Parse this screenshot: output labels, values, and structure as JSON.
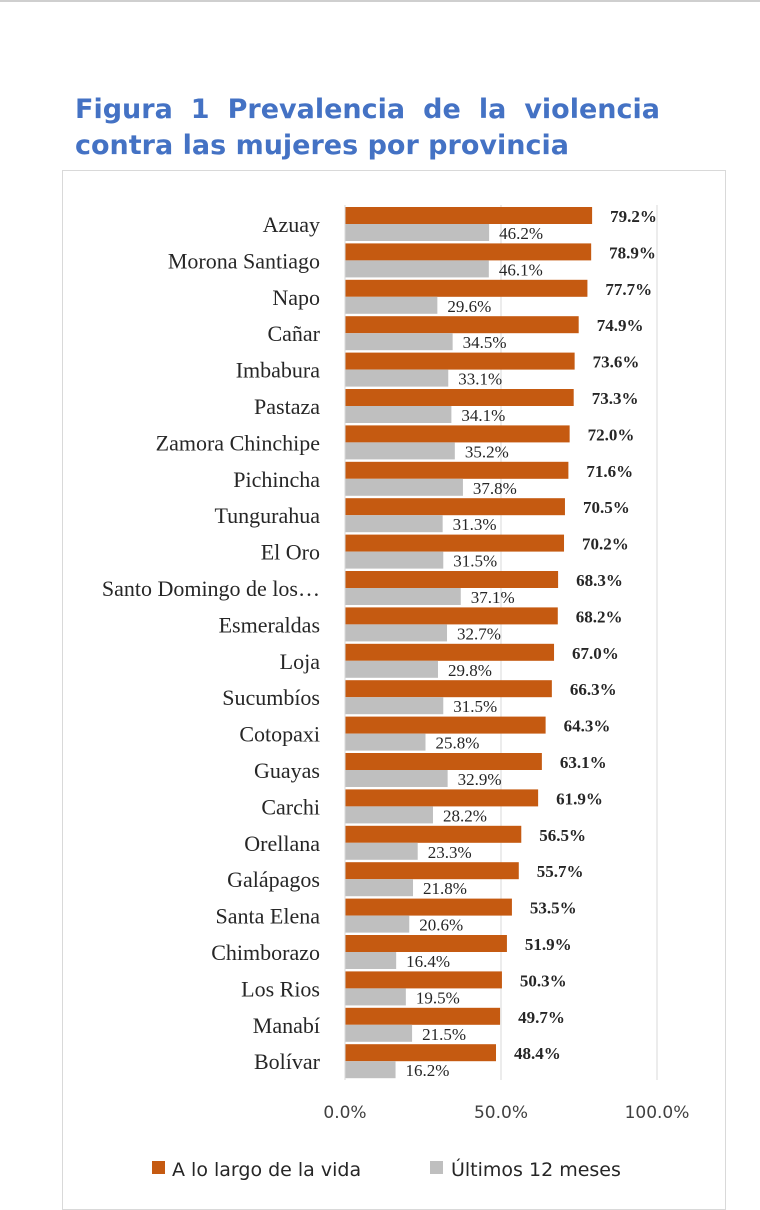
{
  "figure": {
    "title_line1": "Figura 1 Prevalencia de la violencia",
    "title_line2": "contra las mujeres por provincia"
  },
  "chart_data": {
    "type": "bar",
    "orientation": "horizontal",
    "categories": [
      "Azuay",
      "Morona Santiago",
      "Napo",
      "Cañar",
      "Imbabura",
      "Pastaza",
      "Zamora Chinchipe",
      "Pichincha",
      "Tungurahua",
      "El Oro",
      "Santo Domingo de los…",
      "Esmeraldas",
      "Loja",
      "Sucumbíos",
      "Cotopaxi",
      "Guayas",
      "Carchi",
      "Orellana",
      "Galápagos",
      "Santa Elena",
      "Chimborazo",
      "Los Rios",
      "Manabí",
      "Bolívar"
    ],
    "series": [
      {
        "name": "A lo largo de la vida",
        "color": "#c55a11",
        "values": [
          79.2,
          78.9,
          77.7,
          74.9,
          73.6,
          73.3,
          72.0,
          71.6,
          70.5,
          70.2,
          68.3,
          68.2,
          67.0,
          66.3,
          64.3,
          63.1,
          61.9,
          56.5,
          55.7,
          53.5,
          51.9,
          50.3,
          49.7,
          48.4
        ],
        "labels": [
          "79.2%",
          "78.9%",
          "77.7%",
          "74.9%",
          "73.6%",
          "73.3%",
          "72.0%",
          "71.6%",
          "70.5%",
          "70.2%",
          "68.3%",
          "68.2%",
          "67.0%",
          "66.3%",
          "64.3%",
          "63.1%",
          "61.9%",
          "56.5%",
          "55.7%",
          "53.5%",
          "51.9%",
          "50.3%",
          "49.7%",
          "48.4%"
        ]
      },
      {
        "name": "Últimos 12 meses",
        "color": "#bfbfbf",
        "values": [
          46.2,
          46.1,
          29.6,
          34.5,
          33.1,
          34.1,
          35.2,
          37.8,
          31.3,
          31.5,
          37.1,
          32.7,
          29.8,
          31.5,
          25.8,
          32.9,
          28.2,
          23.3,
          21.8,
          20.6,
          16.4,
          19.5,
          21.5,
          16.2
        ],
        "labels": [
          "46.2%",
          "46.1%",
          "29.6%",
          "34.5%",
          "33.1%",
          "34.1%",
          "35.2%",
          "37.8%",
          "31.3%",
          "31.5%",
          "37.1%",
          "32.7%",
          "29.8%",
          "31.5%",
          "25.8%",
          "32.9%",
          "28.2%",
          "23.3%",
          "21.8%",
          "20.6%",
          "16.4%",
          "19.5%",
          "21.5%",
          "16.2%"
        ]
      }
    ],
    "xlim": [
      0,
      100
    ],
    "xticks": [
      0,
      50,
      100
    ],
    "xtick_labels": [
      "0.0%",
      "50.0%",
      "100.0%"
    ],
    "grid": "vertical",
    "legend": "bottom"
  }
}
